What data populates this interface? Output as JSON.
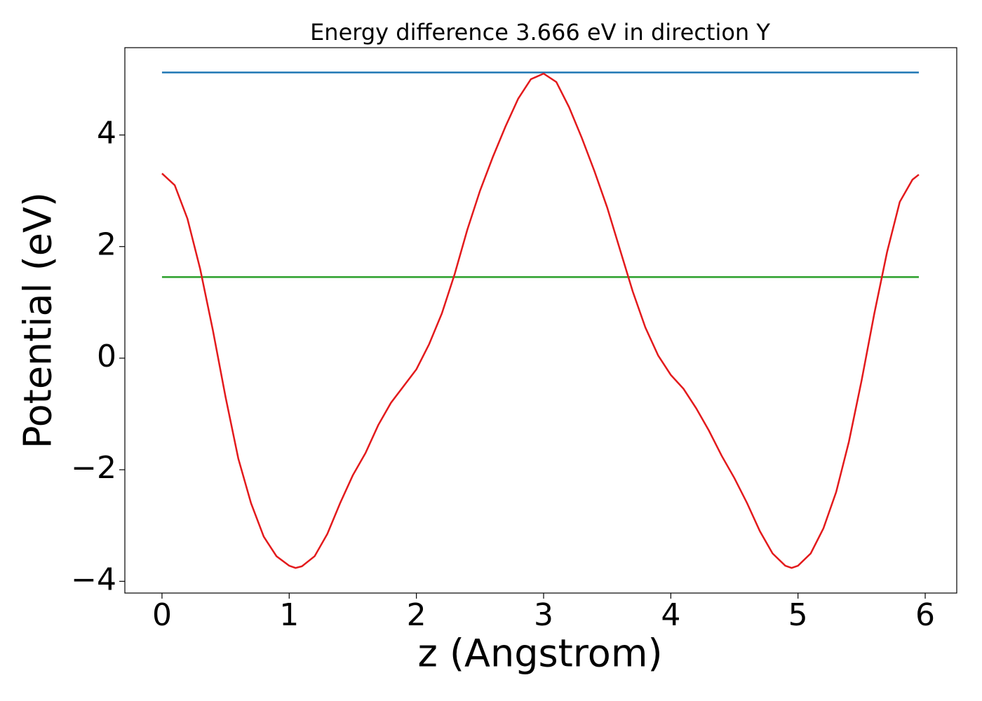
{
  "chart_data": {
    "type": "line",
    "title": "Energy difference 3.666 eV in direction Y",
    "xlabel": "z (Angstrom)",
    "ylabel": "Potential (eV)",
    "xlim": [
      -0.292,
      6.248
    ],
    "ylim": [
      -4.21,
      5.565
    ],
    "xticks": [
      0,
      1,
      2,
      3,
      4,
      5,
      6
    ],
    "yticks": [
      {
        "value": -4,
        "label": "−4"
      },
      {
        "value": -2,
        "label": "−2"
      },
      0,
      2,
      4
    ],
    "series": [
      {
        "color": "#1f77b4",
        "x": [
          0,
          5.95
        ],
        "values": [
          5.12,
          5.12
        ]
      },
      {
        "color": "#2ca02c",
        "x": [
          0,
          5.95
        ],
        "values": [
          1.454,
          1.454
        ]
      },
      {
        "color": "#e31a1c",
        "x": [
          0,
          0.1,
          0.2,
          0.3,
          0.4,
          0.5,
          0.6,
          0.7,
          0.8,
          0.9,
          1.0,
          1.05,
          1.1,
          1.2,
          1.3,
          1.4,
          1.5,
          1.6,
          1.7,
          1.8,
          1.9,
          2.0,
          2.1,
          2.2,
          2.3,
          2.4,
          2.5,
          2.6,
          2.7,
          2.8,
          2.9,
          3.0,
          3.1,
          3.2,
          3.3,
          3.4,
          3.5,
          3.6,
          3.7,
          3.8,
          3.9,
          4.0,
          4.1,
          4.2,
          4.3,
          4.4,
          4.5,
          4.6,
          4.7,
          4.8,
          4.9,
          4.95,
          5.0,
          5.1,
          5.2,
          5.3,
          5.4,
          5.5,
          5.6,
          5.7,
          5.8,
          5.9,
          5.95
        ],
        "values": [
          3.31,
          3.1,
          2.5,
          1.6,
          0.5,
          -0.7,
          -1.8,
          -2.6,
          -3.2,
          -3.55,
          -3.72,
          -3.76,
          -3.73,
          -3.55,
          -3.15,
          -2.6,
          -2.1,
          -1.7,
          -1.2,
          -0.8,
          -0.5,
          -0.2,
          0.25,
          0.8,
          1.5,
          2.3,
          3.0,
          3.6,
          4.15,
          4.65,
          5.0,
          5.1,
          4.95,
          4.5,
          3.95,
          3.35,
          2.7,
          1.95,
          1.2,
          0.55,
          0.05,
          -0.3,
          -0.55,
          -0.9,
          -1.3,
          -1.75,
          -2.15,
          -2.6,
          -3.1,
          -3.5,
          -3.72,
          -3.76,
          -3.72,
          -3.5,
          -3.05,
          -2.4,
          -1.5,
          -0.4,
          0.8,
          1.9,
          2.8,
          3.2,
          3.29
        ]
      }
    ]
  }
}
